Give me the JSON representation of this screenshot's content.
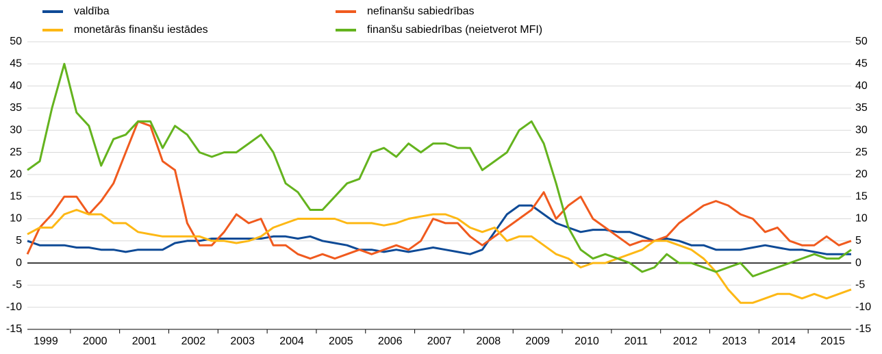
{
  "chart_data": {
    "type": "line",
    "categories": [
      "1999",
      null,
      null,
      null,
      "2000",
      null,
      null,
      null,
      "2001",
      null,
      null,
      null,
      "2002",
      null,
      null,
      null,
      "2003",
      null,
      null,
      null,
      "2004",
      null,
      null,
      null,
      "2005",
      null,
      null,
      null,
      "2006",
      null,
      null,
      null,
      "2007",
      null,
      null,
      null,
      "2008",
      null,
      null,
      null,
      "2009",
      null,
      null,
      null,
      "2010",
      null,
      null,
      null,
      "2011",
      null,
      null,
      null,
      "2012",
      null,
      null,
      null,
      "2013",
      null,
      null,
      null,
      "2014",
      null,
      null,
      null,
      "2015",
      null,
      null,
      null
    ],
    "series": [
      {
        "name": "valdība",
        "color": "#0e4a96",
        "values": [
          5,
          4,
          4,
          4,
          3.5,
          3.5,
          3,
          3,
          2.5,
          3,
          3,
          3,
          4.5,
          5,
          5,
          5.5,
          5.5,
          5.5,
          5.5,
          5.5,
          6,
          6,
          5.5,
          6,
          5,
          4.5,
          4,
          3,
          3,
          2.5,
          3,
          2.5,
          3,
          3.5,
          3,
          2.5,
          2,
          3,
          7,
          11,
          13,
          13,
          11,
          9,
          8,
          7,
          7.5,
          7.5,
          7,
          7,
          6,
          5,
          5.5,
          5,
          4,
          4,
          3,
          3,
          3,
          3.5,
          4,
          3.5,
          3,
          3,
          2.5,
          2,
          2,
          2
        ]
      },
      {
        "name": "nefinanšu sabiedrības",
        "color": "#f05a1e",
        "values": [
          2,
          8,
          11,
          15,
          15,
          11,
          14,
          18,
          25,
          32,
          31,
          23,
          21,
          9,
          4,
          4,
          7,
          11,
          9,
          10,
          4,
          4,
          2,
          1,
          2,
          1,
          2,
          3,
          2,
          3,
          4,
          3,
          5,
          10,
          9,
          9,
          6,
          4,
          6,
          8,
          10,
          12,
          16,
          10,
          13,
          15,
          10,
          8,
          6,
          4,
          5,
          5,
          6,
          9,
          11,
          13,
          14,
          13,
          11,
          10,
          7,
          8,
          5,
          4,
          4,
          6,
          4,
          5
        ]
      },
      {
        "name": "monetārās finanšu iestādes",
        "color": "#fdb815",
        "values": [
          6.5,
          8,
          8,
          11,
          12,
          11,
          11,
          9,
          9,
          7,
          6.5,
          6,
          6,
          6,
          6,
          5,
          5,
          4.5,
          5,
          6,
          8,
          9,
          10,
          10,
          10,
          10,
          9,
          9,
          9,
          8.5,
          9,
          10,
          10.5,
          11,
          11,
          10,
          8,
          7,
          8,
          5,
          6,
          6,
          4,
          2,
          1,
          -1,
          0,
          0,
          1,
          2,
          3,
          5,
          5,
          4,
          3,
          1,
          -2,
          -6,
          -9,
          -9,
          -8,
          -7,
          -7,
          -8,
          -7,
          -8,
          -7,
          -6
        ]
      },
      {
        "name": "finanšu sabiedrības (neietverot MFI)",
        "color": "#64b31e",
        "values": [
          21,
          23,
          35,
          45,
          34,
          31,
          22,
          28,
          29,
          32,
          32,
          26,
          31,
          29,
          25,
          24,
          25,
          25,
          27,
          29,
          25,
          18,
          16,
          12,
          12,
          15,
          18,
          19,
          25,
          26,
          24,
          27,
          25,
          27,
          27,
          26,
          26,
          21,
          23,
          25,
          30,
          32,
          27,
          18,
          8,
          3,
          1,
          2,
          1,
          0,
          -2,
          -1,
          2,
          0,
          0,
          -1,
          -2,
          -1,
          0,
          -3,
          -2,
          -1,
          0,
          1,
          2,
          1,
          1,
          3
        ]
      }
    ],
    "ylim": [
      -15,
      50
    ],
    "yticks": [
      -15,
      -10,
      -5,
      0,
      5,
      10,
      15,
      20,
      25,
      30,
      35,
      40,
      45,
      50
    ],
    "grid": true
  }
}
